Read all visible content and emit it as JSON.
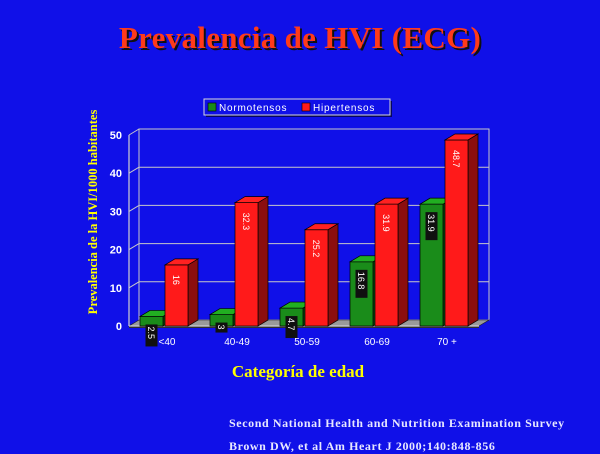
{
  "slide": {
    "title": "Prevalencia de HVI  (ECG)",
    "source_line_1": "Second National Health and Nutrition Examination Survey",
    "source_line_2": "Brown DW, et al Am Heart J 2000;140:848-856"
  },
  "colors": {
    "background": "#1010e8",
    "title": "#ff3a1a",
    "axis_label": "#ffff00",
    "normotensos": "#1a8c1a",
    "hipertensos": "#ff1a1a"
  },
  "chart_data": {
    "type": "bar",
    "title": "",
    "xlabel": "Categoría de edad",
    "ylabel": "Prevalencia de la HVI/1000 habitantes",
    "categories": [
      "<40",
      "40-49",
      "50-59",
      "60-69",
      "70 +"
    ],
    "series": [
      {
        "name": "Normotensos",
        "values": [
          2.5,
          3,
          4.7,
          16.8,
          31.9
        ],
        "labels": [
          "2.5",
          "3",
          "4.7",
          "16.8",
          "31.9"
        ]
      },
      {
        "name": "Hipertensos",
        "values": [
          16,
          32.3,
          25.2,
          31.9,
          48.7
        ],
        "labels": [
          "16",
          "32.3",
          "25.2",
          "31.9",
          "48.7"
        ]
      }
    ],
    "ylim": [
      0,
      50
    ],
    "yticks": [
      0,
      10,
      20,
      30,
      40,
      50
    ],
    "grid": true,
    "legend_position": "top"
  }
}
